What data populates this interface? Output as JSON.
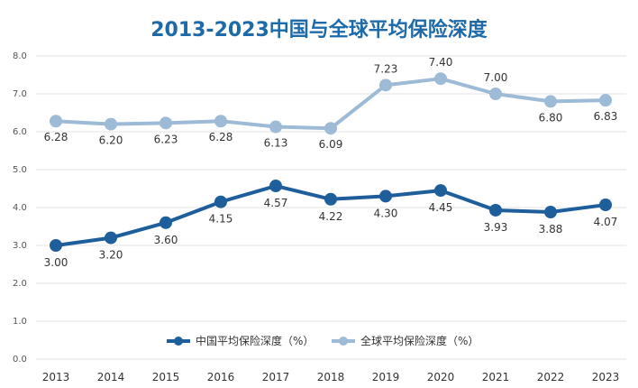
{
  "chart_data": {
    "type": "line",
    "title": "2013-2023中国与全球平均保险深度",
    "x": [
      "2013",
      "2014",
      "2015",
      "2016",
      "2017",
      "2018",
      "2019",
      "2020",
      "2021",
      "2022",
      "2023"
    ],
    "y_ticks": [
      "0.0",
      "1.0",
      "2.0",
      "3.0",
      "4.0",
      "5.0",
      "6.0",
      "7.0",
      "8.0"
    ],
    "ylim": [
      0,
      8
    ],
    "grid": true,
    "legend_position": "bottom-right",
    "series": [
      {
        "name": "中国平均保险深度（%）",
        "color": "#1e5e9b",
        "values": [
          3.0,
          3.2,
          3.6,
          4.15,
          4.57,
          4.22,
          4.3,
          4.45,
          3.93,
          3.88,
          4.07
        ],
        "labels": [
          "3.00",
          "3.20",
          "3.60",
          "4.15",
          "4.57",
          "4.22",
          "4.30",
          "4.45",
          "3.93",
          "3.88",
          "4.07"
        ]
      },
      {
        "name": "全球平均保险深度（%）",
        "color": "#9dbad6",
        "values": [
          6.28,
          6.2,
          6.23,
          6.28,
          6.13,
          6.09,
          7.23,
          7.4,
          7.0,
          6.8,
          6.83
        ],
        "labels": [
          "6.28",
          "6.20",
          "6.23",
          "6.28",
          "6.13",
          "6.09",
          "7.23",
          "7.40",
          "7.00",
          "6.80",
          "6.83"
        ]
      }
    ]
  }
}
